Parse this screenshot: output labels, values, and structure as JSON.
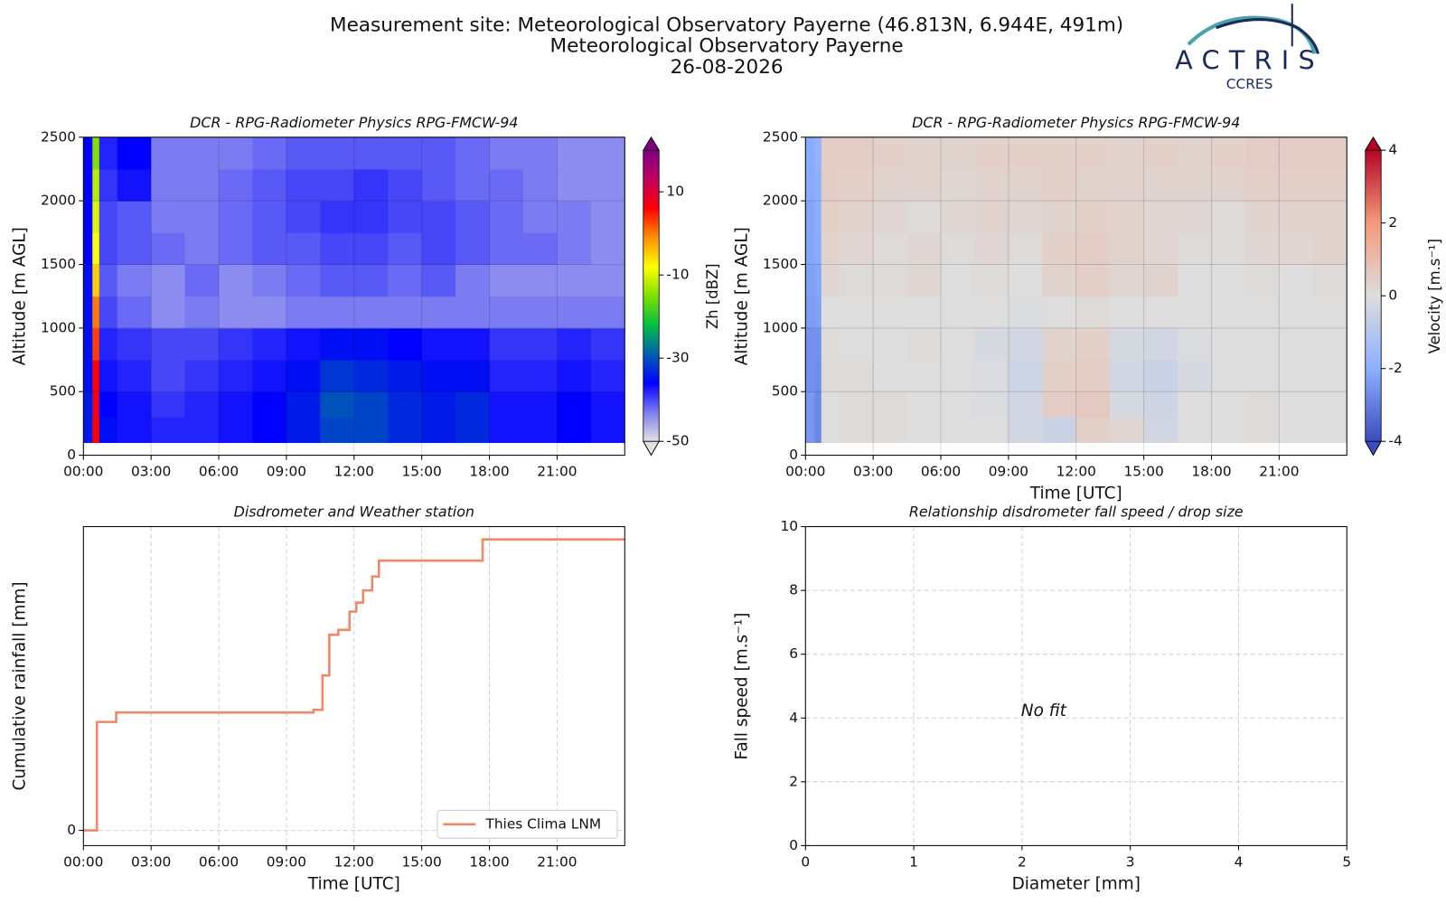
{
  "header": {
    "lines": [
      "Measurement site: Meteorological Observatory Payerne (46.813N, 6.944E, 491m)",
      "Meteorological Observatory Payerne",
      "26-08-2026"
    ],
    "logo": {
      "name": "ACTRIS",
      "subtitle": "CCRES"
    }
  },
  "chart_data": [
    {
      "type": "heatmap",
      "title": "DCR - RPG-Radiometer Physics RPG-FMCW-94",
      "ylabel": "Altitude [m AGL]",
      "x_edges": [
        0,
        0.4,
        0.7,
        1.5,
        3,
        4.5,
        6,
        7.5,
        9,
        10.5,
        12,
        13.5,
        15,
        16.5,
        18,
        19.5,
        21,
        22.5,
        24
      ],
      "y_edges": [
        100,
        300,
        500,
        750,
        1000,
        1250,
        1500,
        1750,
        2000,
        2250,
        2500
      ],
      "z": [
        [
          -34,
          6,
          -35,
          -37,
          -38,
          -38,
          -37,
          -36,
          -34,
          -31,
          -31,
          -33,
          -34,
          -33,
          -37,
          -37,
          -36,
          -37
        ],
        [
          -34,
          8,
          -36,
          -37,
          -39,
          -38,
          -37,
          -36,
          -34,
          -30,
          -31,
          -33,
          -34,
          -33,
          -37,
          -37,
          -36,
          -37
        ],
        [
          -35,
          6,
          -37,
          -38,
          -40,
          -39,
          -38,
          -37,
          -35,
          -32,
          -33,
          -34,
          -35,
          -35,
          -38,
          -38,
          -37,
          -38
        ],
        [
          -35,
          3,
          -38,
          -39,
          -40,
          -40,
          -39,
          -38,
          -37,
          -35,
          -35,
          -36,
          -37,
          -37,
          -39,
          -39,
          -38,
          -39
        ],
        [
          -35,
          0,
          -40,
          -42,
          -44,
          -43,
          -44,
          -44,
          -43,
          -43,
          -43,
          -43,
          -43,
          -43,
          -43,
          -43,
          -43,
          -43
        ],
        [
          -35,
          -5,
          -41,
          -43,
          -44,
          -42,
          -44,
          -43,
          -42,
          -41,
          -41,
          -42,
          -41,
          -43,
          -44,
          -44,
          -44,
          -44
        ],
        [
          -36,
          -8,
          -40,
          -41,
          -42,
          -43,
          -42,
          -41,
          -41,
          -40,
          -40,
          -41,
          -40,
          -41,
          -42,
          -42,
          -43,
          -44
        ],
        [
          -36,
          -10,
          -40,
          -41,
          -43,
          -43,
          -42,
          -41,
          -40,
          -39,
          -39,
          -40,
          -40,
          -41,
          -42,
          -43,
          -43,
          -44
        ],
        [
          -36,
          -12,
          -39,
          -37,
          -43,
          -43,
          -42,
          -41,
          -40,
          -40,
          -39,
          -40,
          -41,
          -42,
          -42,
          -43,
          -44,
          -44
        ],
        [
          -36,
          -15,
          -38,
          -36,
          -43,
          -43,
          -43,
          -42,
          -41,
          -41,
          -41,
          -41,
          -41,
          -42,
          -43,
          -43,
          -44,
          -44
        ]
      ],
      "xlim": [
        0,
        24
      ],
      "xticks": [
        {
          "value": 0,
          "label": "00:00"
        },
        {
          "value": 3,
          "label": "03:00"
        },
        {
          "value": 6,
          "label": "06:00"
        },
        {
          "value": 9,
          "label": "09:00"
        },
        {
          "value": 12,
          "label": "12:00"
        },
        {
          "value": 15,
          "label": "15:00"
        },
        {
          "value": 18,
          "label": "18:00"
        },
        {
          "value": 21,
          "label": "21:00"
        }
      ],
      "ylim": [
        0,
        2500
      ],
      "yticks": [
        0,
        500,
        1000,
        1500,
        2000,
        2500
      ],
      "grid": true,
      "zlabel": "Zh [dBZ]",
      "zlim": [
        -50,
        20
      ],
      "zticks": [
        -50,
        -30,
        -10,
        10
      ],
      "extend": "both",
      "colorscale": [
        "#e2e2e2",
        "#7c7cf2",
        "#0000ff",
        "#0060b0",
        "#00c040",
        "#80e000",
        "#ffff00",
        "#ff9000",
        "#ff0000",
        "#c00060",
        "#800080"
      ]
    },
    {
      "type": "heatmap",
      "title": "DCR - RPG-Radiometer Physics RPG-FMCW-94",
      "ylabel": "Altitude [m AGL]",
      "xlabel": "Time [UTC]",
      "x_edges": [
        0,
        0.4,
        0.7,
        1.5,
        3,
        4.5,
        6,
        7.5,
        9,
        10.5,
        12,
        13.5,
        15,
        16.5,
        18,
        19.5,
        21,
        22.5,
        24
      ],
      "y_edges": [
        100,
        300,
        500,
        750,
        1000,
        1250,
        1500,
        1750,
        2000,
        2250,
        2500
      ],
      "z": [
        [
          -2.5,
          -2.8,
          0,
          0.1,
          0.1,
          0,
          0,
          0,
          -0.3,
          -0.5,
          0.4,
          0.2,
          -0.3,
          0,
          0,
          0.1,
          0,
          0
        ],
        [
          -2.5,
          -2.8,
          0,
          0.1,
          0.1,
          0,
          0,
          -0.1,
          -0.3,
          0.5,
          0.6,
          -0.2,
          -0.4,
          0,
          0,
          0.1,
          0,
          0
        ],
        [
          -2.6,
          -2.7,
          0.1,
          0.1,
          0,
          0,
          0,
          -0.1,
          -0.4,
          0.4,
          0.5,
          -0.3,
          -0.5,
          -0.2,
          0,
          0,
          0,
          0
        ],
        [
          -2.6,
          -2.6,
          0.1,
          0,
          0,
          0.1,
          0,
          -0.2,
          -0.3,
          0.3,
          0.4,
          -0.2,
          -0.3,
          -0.1,
          0,
          0,
          0,
          0
        ],
        [
          -2.4,
          -2.3,
          0,
          0,
          0,
          0,
          0,
          0,
          -0.1,
          0,
          0.1,
          0,
          0,
          0,
          0,
          0,
          0,
          0
        ],
        [
          -2.3,
          -2.2,
          0.2,
          0.1,
          0.1,
          0.2,
          0,
          0.1,
          0,
          0.3,
          0.4,
          0.2,
          0.3,
          0,
          0,
          0.1,
          0,
          0.1
        ],
        [
          -2.2,
          -2.1,
          0.3,
          0.2,
          0.1,
          0.2,
          0.1,
          0.2,
          0.1,
          0.4,
          0.5,
          0.3,
          0.2,
          0.1,
          0.1,
          0.2,
          0.2,
          0.3
        ],
        [
          -2.2,
          -2.0,
          0.4,
          0.3,
          0.2,
          0.1,
          0.2,
          0.3,
          0.2,
          0.3,
          0.4,
          0.3,
          0.2,
          0.2,
          0.1,
          0.3,
          0.3,
          0.3
        ],
        [
          -2.1,
          -2.0,
          0.5,
          0.4,
          0.3,
          0.3,
          0.2,
          0.3,
          0.3,
          0.4,
          0.3,
          0.3,
          0.3,
          0.3,
          0.3,
          0.4,
          0.4,
          0.4
        ],
        [
          -2.1,
          -1.9,
          0.5,
          0.5,
          0.4,
          0.3,
          0.3,
          0.4,
          0.4,
          0.4,
          0.4,
          0.3,
          0.4,
          0.3,
          0.4,
          0.5,
          0.5,
          0.5
        ]
      ],
      "xlim": [
        0,
        24
      ],
      "xticks": [
        {
          "value": 0,
          "label": "00:00"
        },
        {
          "value": 3,
          "label": "03:00"
        },
        {
          "value": 6,
          "label": "06:00"
        },
        {
          "value": 9,
          "label": "09:00"
        },
        {
          "value": 12,
          "label": "12:00"
        },
        {
          "value": 15,
          "label": "15:00"
        },
        {
          "value": 18,
          "label": "18:00"
        },
        {
          "value": 21,
          "label": "21:00"
        }
      ],
      "ylim": [
        0,
        2500
      ],
      "yticks": [
        0,
        500,
        1000,
        1500,
        2000,
        2500
      ],
      "grid": true,
      "zlabel": "Velocity [m.s⁻¹]",
      "zlim": [
        -4,
        4
      ],
      "zticks": [
        -4,
        -2,
        0,
        2,
        4
      ],
      "extend": "both",
      "colorscale": [
        "#3b4cc0",
        "#8db0fe",
        "#dddddd",
        "#f49a7b",
        "#b40426"
      ]
    },
    {
      "type": "line",
      "title": "Disdrometer and Weather station",
      "xlabel": "Time [UTC]",
      "ylabel": "Cumulative rainfall [mm]",
      "step": "post",
      "x": [
        0,
        0.6,
        1.45,
        10.2,
        10.6,
        10.9,
        11.3,
        11.8,
        12.1,
        12.4,
        12.8,
        13.1,
        17.7,
        24
      ],
      "series": [
        {
          "name": "Thies Clima LNM",
          "color": "#ee8866",
          "values": [
            0,
            0.357,
            0.388,
            0.397,
            0.51,
            0.644,
            0.66,
            0.72,
            0.75,
            0.79,
            0.836,
            0.888,
            0.958,
            0.958
          ]
        }
      ],
      "xlim": [
        0,
        24
      ],
      "xticks": [
        {
          "value": 0,
          "label": "00:00"
        },
        {
          "value": 3,
          "label": "03:00"
        },
        {
          "value": 6,
          "label": "06:00"
        },
        {
          "value": 9,
          "label": "09:00"
        },
        {
          "value": 12,
          "label": "12:00"
        },
        {
          "value": 15,
          "label": "15:00"
        },
        {
          "value": 18,
          "label": "18:00"
        },
        {
          "value": 21,
          "label": "21:00"
        }
      ],
      "ylim": [
        -0.05,
        1.0
      ],
      "yticks": [
        0
      ],
      "grid": true,
      "legend": "lower right"
    },
    {
      "type": "scatter",
      "title": "Relationship disdrometer fall speed / drop size",
      "xlabel": "Diameter [mm]",
      "ylabel": "Fall speed [m.s⁻¹]",
      "annotation": "No fit",
      "x": [],
      "values": [],
      "xlim": [
        0,
        5
      ],
      "xticks": [
        0,
        1,
        2,
        3,
        4,
        5
      ],
      "ylim": [
        0,
        10
      ],
      "yticks": [
        0,
        2,
        4,
        6,
        8,
        10
      ],
      "grid": true
    }
  ]
}
